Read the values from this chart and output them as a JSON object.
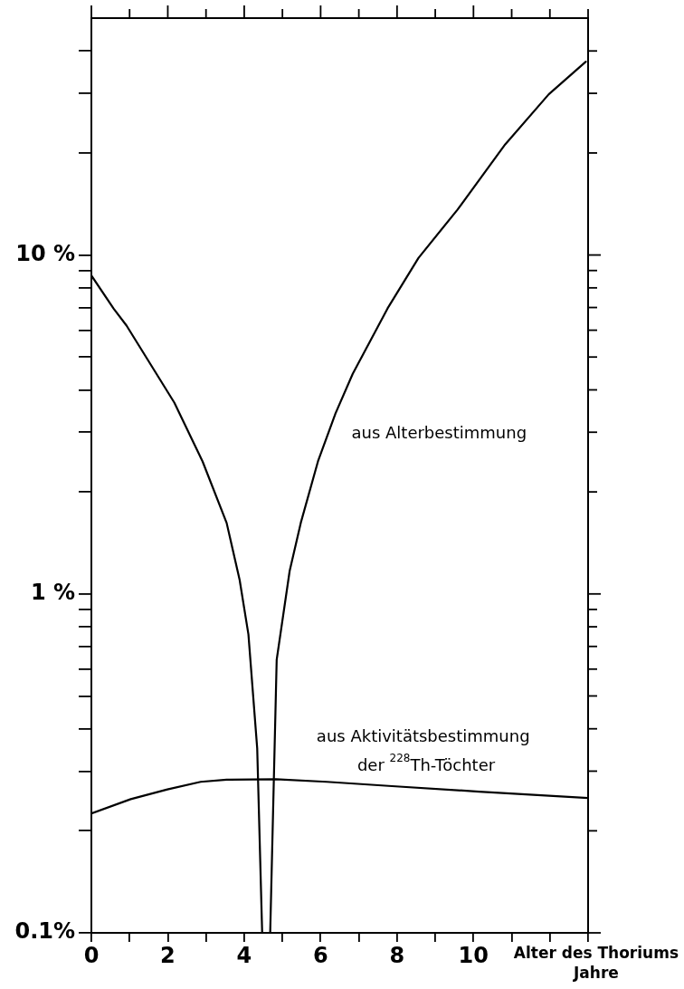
{
  "chart_data": {
    "type": "line",
    "xlabel": "Alter des Thoriums\nJahre",
    "log": "y",
    "marker": "none",
    "line_style": "solid",
    "xlim": [
      0,
      13
    ],
    "ylim": [
      0.1,
      50
    ],
    "xticks": [
      0,
      {
        "value": 1,
        "label": null
      },
      2,
      {
        "value": 3,
        "label": null
      },
      4,
      {
        "value": 5,
        "label": null
      },
      6,
      {
        "value": 7,
        "label": null
      },
      8,
      {
        "value": 9,
        "label": null
      },
      10,
      {
        "value": 11,
        "label": null
      },
      {
        "value": 12,
        "label": null
      },
      {
        "value": 13,
        "label": null
      }
    ],
    "yticks": [
      {
        "value": 0.1,
        "label": "0.1%"
      },
      {
        "value": 0.2,
        "label": null
      },
      {
        "value": 0.3,
        "label": null
      },
      {
        "value": 0.4,
        "label": null
      },
      {
        "value": 0.5,
        "label": null
      },
      {
        "value": 0.6,
        "label": null
      },
      {
        "value": 0.7,
        "label": null
      },
      {
        "value": 0.8,
        "label": null
      },
      {
        "value": 0.9,
        "label": null
      },
      {
        "value": 1,
        "label": "1 %"
      },
      {
        "value": 2,
        "label": null
      },
      {
        "value": 3,
        "label": null
      },
      {
        "value": 4,
        "label": null
      },
      {
        "value": 5,
        "label": null
      },
      {
        "value": 6,
        "label": null
      },
      {
        "value": 7,
        "label": null
      },
      {
        "value": 8,
        "label": null
      },
      {
        "value": 9,
        "label": null
      },
      {
        "value": 10,
        "label": "10 %"
      },
      {
        "value": 20,
        "label": null
      },
      {
        "value": 30,
        "label": null
      },
      {
        "value": 40,
        "label": null
      }
    ],
    "series": [
      {
        "color": "#000000",
        "x": [
          0,
          0.58,
          0.92,
          2.17,
          2.91,
          3.54,
          3.88,
          4.11,
          4.34,
          4.47,
          4.57,
          4.68,
          4.85,
          5.19,
          5.48,
          5.93,
          6.39,
          6.84,
          7.75,
          8.56,
          9.58,
          10.83,
          11.97,
          12.94
        ],
        "values": [
          8.7,
          6.95,
          6.19,
          3.67,
          2.46,
          1.62,
          1.1,
          0.76,
          0.35,
          0.1,
          null,
          0.1,
          0.64,
          1.17,
          1.62,
          2.46,
          3.41,
          4.46,
          6.95,
          9.8,
          13.6,
          21.2,
          29.8,
          37.2
        ]
      },
      {
        "color": "#000000",
        "x": [
          0,
          1.03,
          1.99,
          2.86,
          3.54,
          4.83,
          6.16,
          7.87,
          10.15,
          13
        ],
        "values": [
          0.225,
          0.248,
          0.265,
          0.279,
          0.283,
          0.284,
          0.279,
          0.271,
          0.261,
          0.25
        ]
      }
    ],
    "annotations": [
      "aus Alterbestimmung",
      "aus Aktivitätsbestimmung",
      "der $^{228}$Th-Töchter"
    ]
  }
}
